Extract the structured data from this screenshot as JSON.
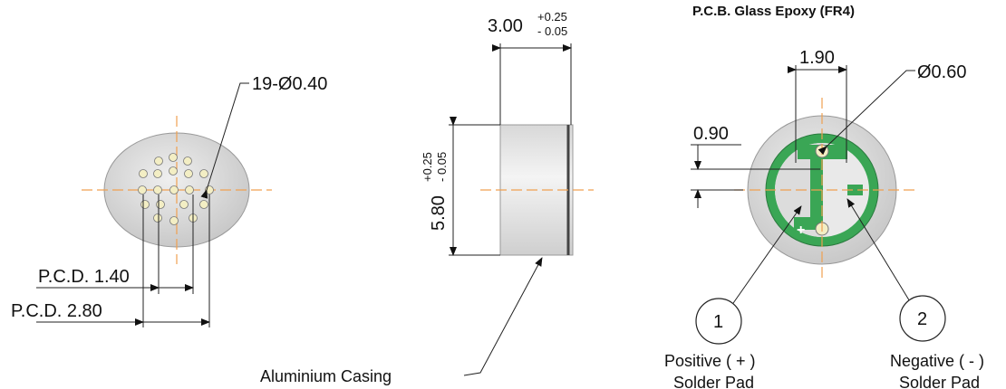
{
  "front_view": {
    "hole_note": "19-Ø0.40",
    "pcd_inner": "P.C.D. 1.40",
    "pcd_outer": "P.C.D. 2.80"
  },
  "side_view": {
    "length_value": "3.00",
    "length_tol_upper": "+0.25",
    "length_tol_lower": "- 0.05",
    "diameter_value": "5.80",
    "diameter_tol_upper": "+0.25",
    "diameter_tol_lower": "- 0.05",
    "casing_label": "Aluminium Casing"
  },
  "pcb_view": {
    "title": "P.C.B. Glass Epoxy (FR4)",
    "pad_spacing": "1.90",
    "pad_diameter": "Ø0.60",
    "pad_offset": "0.90",
    "callout_1": "1",
    "callout_2": "2",
    "positive_label": "Positive ( + )",
    "positive_sub": "Solder Pad",
    "negative_label": "Negative ( - )",
    "negative_sub": "Solder Pad"
  },
  "colors": {
    "pcb_green": "#3aa655",
    "pad_cream": "#f3eec4",
    "body_grey": "#dcdcdc",
    "centerline": "#f0a050"
  }
}
